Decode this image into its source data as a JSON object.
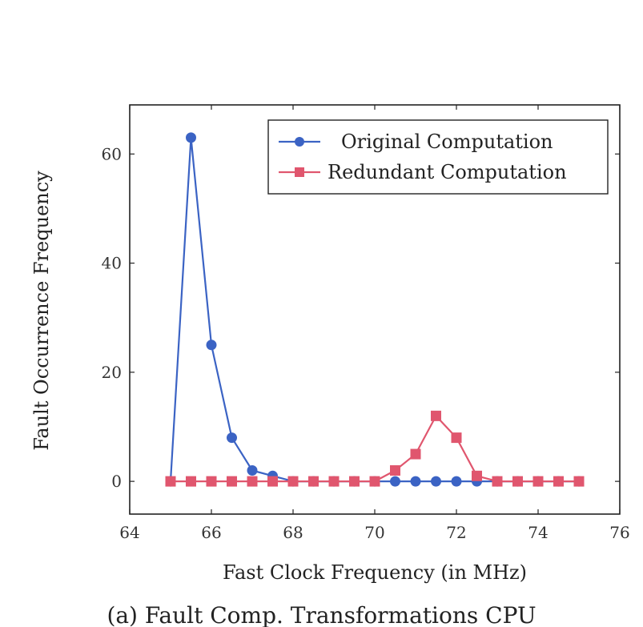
{
  "chart_data": {
    "type": "line",
    "xlabel": "Fast Clock Frequency (in MHz)",
    "ylabel": "Fault Occurrence Frequency",
    "xlim": [
      64,
      76
    ],
    "ylim": [
      -6,
      69
    ],
    "xticks": [
      64,
      66,
      68,
      70,
      72,
      74,
      76
    ],
    "yticks": [
      0,
      20,
      40,
      60
    ],
    "grid": false,
    "legend_position": "top-right",
    "series": [
      {
        "name": "Original Computation",
        "color": "#3b63c4",
        "marker": "circle",
        "x": [
          65,
          65.5,
          66,
          66.5,
          67,
          67.5,
          68,
          68.5,
          69,
          69.5,
          70,
          70.5,
          71,
          71.5,
          72,
          72.5,
          73,
          73.5,
          74,
          74.5,
          75
        ],
        "y": [
          0,
          63,
          25,
          8,
          2,
          1,
          0,
          0,
          0,
          0,
          0,
          0,
          0,
          0,
          0,
          0,
          0,
          0,
          0,
          0,
          0
        ]
      },
      {
        "name": "Redundant Computation",
        "color": "#e0566e",
        "marker": "square",
        "x": [
          65,
          65.5,
          66,
          66.5,
          67,
          67.5,
          68,
          68.5,
          69,
          69.5,
          70,
          70.5,
          71,
          71.5,
          72,
          72.5,
          73,
          73.5,
          74,
          74.5,
          75
        ],
        "y": [
          0,
          0,
          0,
          0,
          0,
          0,
          0,
          0,
          0,
          0,
          0,
          2,
          5,
          12,
          8,
          1,
          0,
          0,
          0,
          0,
          0
        ]
      }
    ]
  },
  "caption": "(a) Fault Comp. Transformations CPU"
}
